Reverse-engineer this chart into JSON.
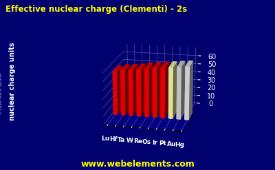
{
  "title": "Effective nuclear charge (Clementi) - 2s",
  "title_color": "#ffff00",
  "background_color": "#00006e",
  "plot_bg_color": "#0000aa",
  "ylabel": "nuclear charge units",
  "elements": [
    "Lu",
    "Hf",
    "Ta",
    "W",
    "Re",
    "Os",
    "Ir",
    "Pt",
    "Au",
    "Hg"
  ],
  "values": [
    52.19,
    54.19,
    55.19,
    56.19,
    58.19,
    59.19,
    60.19,
    61.19,
    62.25,
    63.25
  ],
  "bar_colors": [
    "#ff0000",
    "#ff0000",
    "#ff0000",
    "#ff0000",
    "#ff0000",
    "#ff0000",
    "#ff0000",
    "#ffffaa",
    "#d8d8d8",
    "#e8e8e8"
  ],
  "ylim": [
    0,
    70
  ],
  "yticks": [
    0,
    10,
    20,
    30,
    40,
    50,
    60
  ],
  "website": "www.webelements.com",
  "website_color": "#ffff00",
  "copyright": "©1999 Mark Winter",
  "copyright_color": "#aaaadd",
  "grid_color": "#6666bb",
  "tick_label_color": "#ffffff",
  "axis_label_color": "#ffffff",
  "elev": 18,
  "azim": -78
}
